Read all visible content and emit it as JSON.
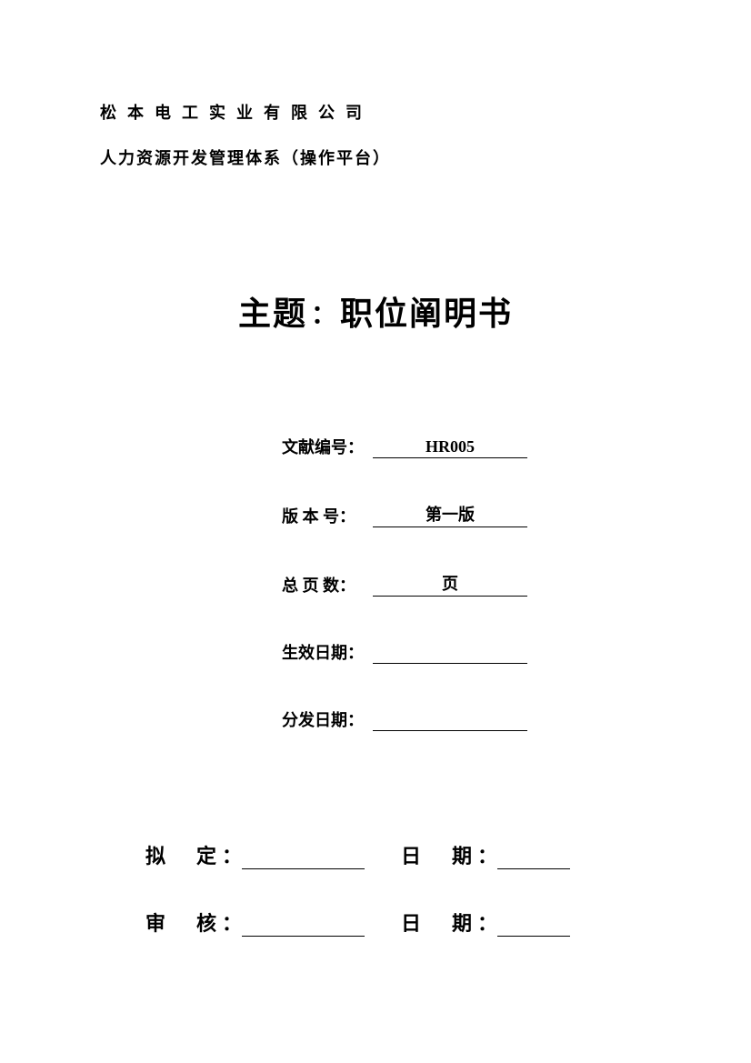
{
  "header": {
    "company": "松本电工实业有限公司",
    "system": "人力资源开发管理体系（操作平台）"
  },
  "title": {
    "label": "主题",
    "value": "职位阐明书"
  },
  "info": {
    "doc_number": {
      "label": "文献编号：",
      "value": "HR005"
    },
    "version": {
      "label": "版 本 号：",
      "value": "第一版"
    },
    "total_pages": {
      "label": "总 页 数：",
      "value": "页"
    },
    "effective_date": {
      "label": "生效日期：",
      "value": ""
    },
    "distribute_date": {
      "label": "分发日期：",
      "value": ""
    }
  },
  "signatures": {
    "drafted": {
      "label": "拟定",
      "date_label": "日期"
    },
    "reviewed": {
      "label": "审核",
      "date_label": "日期"
    }
  }
}
